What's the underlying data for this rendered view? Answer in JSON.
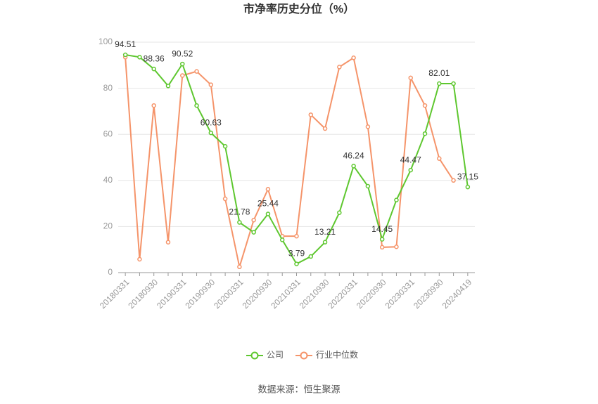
{
  "chart_data": {
    "type": "line",
    "title": "市净率历史分位（%）",
    "source": "数据来源：恒生聚源",
    "categories": [
      "20180331",
      null,
      "20180930",
      null,
      "20190331",
      null,
      "20190930",
      null,
      "20200331",
      null,
      "20200930",
      null,
      "20210331",
      null,
      "20210930",
      null,
      "20220331",
      null,
      "20220930",
      null,
      "20230331",
      null,
      "20230930",
      null,
      "20240419"
    ],
    "series": [
      {
        "name": "公司",
        "color": "#5ec72f",
        "values": [
          94.51,
          93.5,
          88.36,
          81,
          90.52,
          72.5,
          60.63,
          54.8,
          21.78,
          17.5,
          25.44,
          14.2,
          3.79,
          7,
          13.21,
          26,
          46.24,
          37.5,
          14.45,
          31.5,
          44.47,
          60.3,
          82.01,
          82,
          37.15
        ]
      },
      {
        "name": "行业中位数",
        "color": "#f5946a",
        "values": [
          93.5,
          5.8,
          72.5,
          13.2,
          85.5,
          87.3,
          81.5,
          32,
          2.5,
          22.8,
          36.2,
          15.8,
          15.8,
          68.5,
          62.5,
          89.2,
          93.2,
          63.3,
          11,
          11.2,
          84.5,
          72.5,
          49.5,
          40,
          null
        ]
      }
    ],
    "ylim": [
      0,
      100
    ],
    "yticks": [
      0,
      20,
      40,
      60,
      80,
      100
    ],
    "grid": true
  }
}
